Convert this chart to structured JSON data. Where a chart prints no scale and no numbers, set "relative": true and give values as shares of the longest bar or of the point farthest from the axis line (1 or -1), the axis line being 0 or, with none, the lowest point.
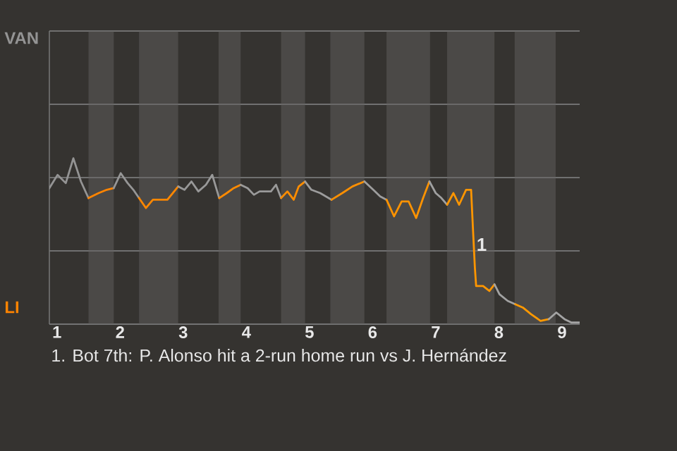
{
  "chart_data": {
    "type": "line",
    "relative": true,
    "grid": "y",
    "tick_labels": "x",
    "marker": "none",
    "line_style": "solid",
    "xlim": [
      0.88,
      9.28
    ],
    "xticks": [
      {
        "value": 1,
        "label": "1"
      },
      {
        "value": 2,
        "label": "2"
      },
      {
        "value": 3,
        "label": "3"
      },
      {
        "value": 4,
        "label": "4"
      },
      {
        "value": 5,
        "label": "5"
      },
      {
        "value": 6,
        "label": "6"
      },
      {
        "value": 7,
        "label": "7"
      },
      {
        "value": 8,
        "label": "8"
      },
      {
        "value": 9,
        "label": "9"
      }
    ],
    "series": [
      {
        "name": "VAN",
        "color": "#949494",
        "x": [
          0.88,
          1.01,
          1.14,
          1.26,
          1.38,
          1.5
        ],
        "values": [
          0.82,
          0.9,
          0.85,
          1,
          0.86,
          0.76
        ]
      },
      {
        "name": "LI",
        "color": "#ff8400",
        "x": [
          1.5,
          1.66,
          1.79,
          1.9
        ],
        "values": [
          0.76,
          0.79,
          0.81,
          0.82
        ]
      },
      {
        "color": "#969696",
        "x": [
          1.9,
          2.01,
          2.12,
          2.21,
          2.3
        ],
        "values": [
          0.82,
          0.91,
          0.85,
          0.81,
          0.76
        ]
      },
      {
        "color": "#ff8700",
        "x": [
          2.3,
          2.41,
          2.52,
          2.63,
          2.75,
          2.92
        ],
        "values": [
          0.76,
          0.7,
          0.75,
          0.75,
          0.75,
          0.83
        ]
      },
      {
        "color": "#989898",
        "x": [
          2.92,
          3.02,
          3.13,
          3.24,
          3.36,
          3.46,
          3.57
        ],
        "values": [
          0.83,
          0.81,
          0.86,
          0.8,
          0.84,
          0.9,
          0.76
        ]
      },
      {
        "color": "#ff8a00",
        "x": [
          3.57,
          3.69,
          3.8,
          3.91
        ],
        "values": [
          0.76,
          0.79,
          0.82,
          0.84
        ]
      },
      {
        "color": "#9a9a9a",
        "x": [
          3.91,
          4.02,
          4.12,
          4.21,
          4.3,
          4.39,
          4.47,
          4.55
        ],
        "values": [
          0.84,
          0.82,
          0.78,
          0.8,
          0.8,
          0.8,
          0.84,
          0.76
        ]
      },
      {
        "color": "#ff8d00",
        "x": [
          4.55,
          4.65,
          4.75,
          4.83,
          4.93
        ],
        "values": [
          0.76,
          0.8,
          0.75,
          0.83,
          0.86
        ]
      },
      {
        "color": "#9c9c9c",
        "x": [
          4.93,
          5.03,
          5.17,
          5.35
        ],
        "values": [
          0.86,
          0.81,
          0.79,
          0.75
        ]
      },
      {
        "color": "#ff9000",
        "x": [
          5.35,
          5.52,
          5.68,
          5.87
        ],
        "values": [
          0.75,
          0.79,
          0.83,
          0.86
        ]
      },
      {
        "color": "#9e9e9e",
        "x": [
          5.87,
          6.01,
          6.12,
          6.22
        ],
        "values": [
          0.86,
          0.81,
          0.77,
          0.75
        ]
      },
      {
        "color": "#ff9300",
        "x": [
          6.22,
          6.34,
          6.46,
          6.57,
          6.69,
          6.8,
          6.9
        ],
        "values": [
          0.75,
          0.65,
          0.74,
          0.74,
          0.64,
          0.76,
          0.86
        ]
      },
      {
        "color": "#a0a0a0",
        "x": [
          6.9,
          7,
          7.09,
          7.18
        ],
        "values": [
          0.86,
          0.79,
          0.76,
          0.72
        ]
      },
      {
        "color": "#ff9600",
        "x": [
          7.18,
          7.28,
          7.37,
          7.48,
          7.56,
          7.59,
          7.62,
          7.64,
          7.75,
          7.85,
          7.93
        ],
        "values": [
          0.72,
          0.79,
          0.72,
          0.81,
          0.81,
          0.57,
          0.34,
          0.23,
          0.23,
          0.2,
          0.24
        ]
      },
      {
        "color": "#a2a2a2",
        "x": [
          7.93,
          8.01,
          8.14,
          8.26
        ],
        "values": [
          0.24,
          0.18,
          0.14,
          0.12
        ]
      },
      {
        "color": "#ff9900",
        "x": [
          8.26,
          8.38,
          8.51,
          8.66,
          8.79
        ],
        "values": [
          0.12,
          0.1,
          0.06,
          0.02,
          0.03
        ]
      },
      {
        "color": "#a4a4a4",
        "x": [
          8.79,
          8.91,
          9.04,
          9.15,
          9.28
        ],
        "values": [
          0.03,
          0.07,
          0.03,
          0.01,
          0.01
        ]
      }
    ],
    "bands": [
      {
        "axis": "x",
        "from": 1.5,
        "to": 1.9,
        "color": "#4b4947"
      },
      {
        "axis": "x",
        "from": 2.3,
        "to": 2.92,
        "color": "#4b4947"
      },
      {
        "axis": "x",
        "from": 3.56,
        "to": 3.91,
        "color": "#4b4947"
      },
      {
        "axis": "x",
        "from": 4.55,
        "to": 4.93,
        "color": "#4b4947"
      },
      {
        "axis": "x",
        "from": 5.33,
        "to": 5.87,
        "color": "#4b4947"
      },
      {
        "axis": "x",
        "from": 6.22,
        "to": 6.91,
        "color": "#4b4947"
      },
      {
        "axis": "x",
        "from": 7.18,
        "to": 7.93,
        "color": "#4b4947"
      },
      {
        "axis": "x",
        "from": 8.25,
        "to": 8.9,
        "color": "#4b4947"
      }
    ],
    "annotations": [
      {
        "text": "1",
        "x": 7.62,
        "y": 0.48
      },
      "1. Bot 7th: P. Alonso hit a 2-run home run vs J. Hernández"
    ]
  }
}
